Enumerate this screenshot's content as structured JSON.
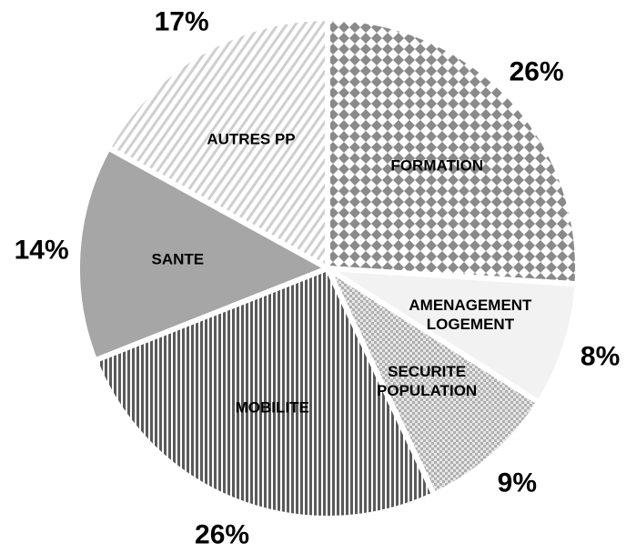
{
  "chart_data": {
    "type": "pie",
    "categories": [
      "FORMATION",
      "AMENAGEMENT\nLOGEMENT",
      "SECURITE\nPOPULATION",
      "MOBILITE",
      "SANTE",
      "AUTRES PP"
    ],
    "values": [
      26,
      8,
      9,
      26,
      14,
      17
    ],
    "value_labels": [
      "26%",
      "8%",
      "9%",
      "26%",
      "14%",
      "17%"
    ],
    "colors": [
      "#8a8a8a",
      "#f2f2f2",
      "#b0b0b0",
      "#5a5a5a",
      "#a6a6a6",
      "#cfcfcf"
    ],
    "patterns": [
      "diamond",
      "solid",
      "checker",
      "vstripe",
      "solid",
      "diagonal"
    ]
  }
}
